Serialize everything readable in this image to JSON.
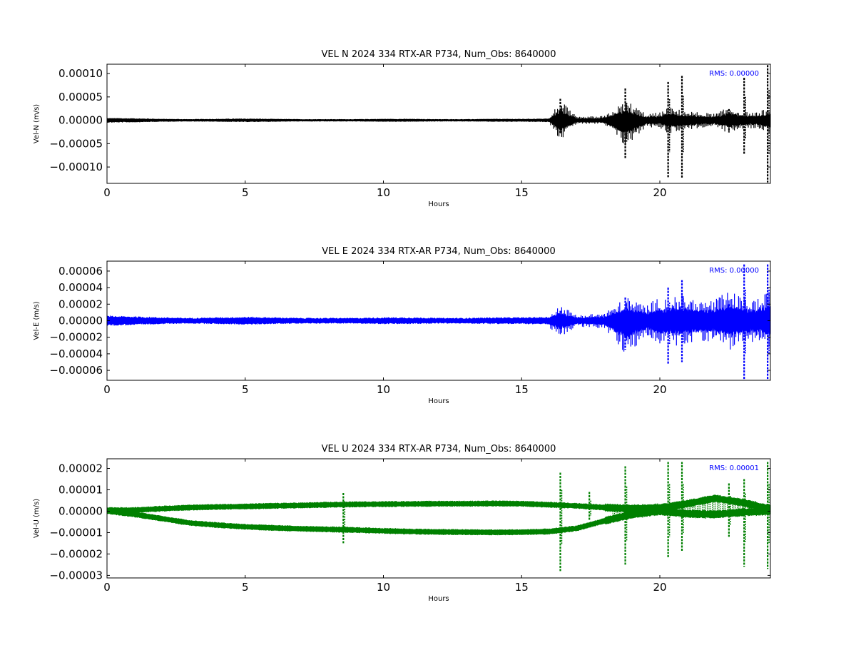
{
  "chart_data": [
    {
      "type": "line",
      "title": "VEL N 2024 334 RTX-AR  P734, Num_Obs: 8640000",
      "xlabel": "Hours",
      "ylabel": "Vel-N (m/s)",
      "xlim": [
        0,
        24
      ],
      "ylim": [
        -0.000135,
        0.00012
      ],
      "xticks": [
        0,
        5,
        10,
        15,
        20
      ],
      "xtick_labels": [
        "0",
        "5",
        "10",
        "15",
        "20"
      ],
      "yticks": [
        -0.0001,
        -5e-05,
        0,
        5e-05,
        0.0001
      ],
      "ytick_labels": [
        "−0.00010",
        "−0.00005",
        "0.00000",
        "0.00005",
        "0.00010"
      ],
      "annotation": "RMS:  0.00000",
      "color": "#000000",
      "series": [
        {
          "x": [
            0,
            1,
            2,
            3,
            4,
            5,
            6,
            7,
            8,
            9,
            10,
            11,
            12,
            13,
            14,
            15,
            16,
            16.4,
            17,
            18,
            18.8,
            19.5,
            20,
            20.3,
            20.8,
            21.5,
            22,
            22.5,
            23,
            23.5,
            24
          ],
          "upper": [
            3.5e-06,
            3e-06,
            2e-06,
            1.5e-06,
            2e-06,
            2.5e-06,
            2e-06,
            1.5e-06,
            1.5e-06,
            1.5e-06,
            2e-06,
            2e-06,
            1.5e-06,
            1.5e-06,
            2e-06,
            2e-06,
            2.5e-06,
            1.8e-05,
            3e-06,
            4e-06,
            1.8e-05,
            6e-06,
            7e-06,
            1.2e-05,
            9e-06,
            7e-06,
            6e-06,
            1.2e-05,
            8e-06,
            7e-06,
            1.2e-05
          ],
          "lower": [
            -3.5e-06,
            -3e-06,
            -2e-06,
            -1.5e-06,
            -2e-06,
            -2.5e-06,
            -2e-06,
            -1.5e-06,
            -1.5e-06,
            -1.5e-06,
            -2e-06,
            -2e-06,
            -1.5e-06,
            -1.5e-06,
            -2e-06,
            -2e-06,
            -2.5e-06,
            -1.8e-05,
            -3e-06,
            -4e-06,
            -2.5e-05,
            -6e-06,
            -7e-06,
            -1.2e-05,
            -9e-06,
            -7e-06,
            -6e-06,
            -1.2e-05,
            -8e-06,
            -7e-06,
            -1.2e-05
          ]
        }
      ],
      "spikes": [
        {
          "x": 16.4,
          "hi": 4.6e-05,
          "lo": -2.7e-05
        },
        {
          "x": 18.75,
          "hi": 6.8e-05,
          "lo": -8.3e-05
        },
        {
          "x": 20.3,
          "hi": 8.2e-05,
          "lo": -0.000124
        },
        {
          "x": 20.8,
          "hi": 9.5e-05,
          "lo": -0.000124
        },
        {
          "x": 22.5,
          "hi": 2.4e-05,
          "lo": -2.6e-05
        },
        {
          "x": 23.05,
          "hi": 9.1e-05,
          "lo": -7.2e-05
        },
        {
          "x": 23.9,
          "hi": 0.000118,
          "lo": -0.000133
        }
      ]
    },
    {
      "type": "line",
      "title": "VEL E 2024 334 RTX-AR  P734, Num_Obs: 8640000",
      "xlabel": "Hours",
      "ylabel": "Vel-E (m/s)",
      "xlim": [
        0,
        24
      ],
      "ylim": [
        -7.2e-05,
        7.2e-05
      ],
      "xticks": [
        0,
        5,
        10,
        15,
        20
      ],
      "xtick_labels": [
        "0",
        "5",
        "10",
        "15",
        "20"
      ],
      "yticks": [
        -6e-05,
        -4e-05,
        -2e-05,
        0,
        2e-05,
        4e-05,
        6e-05
      ],
      "ytick_labels": [
        "−0.00006",
        "−0.00004",
        "−0.00002",
        "0.00000",
        "0.00002",
        "0.00004",
        "0.00006"
      ],
      "annotation": "RMS:  0.00000",
      "color": "#0000ff",
      "series": [
        {
          "x": [
            0,
            1,
            2,
            3,
            4,
            5,
            6,
            7,
            8,
            9,
            10,
            11,
            12,
            13,
            14,
            15,
            16,
            16.4,
            17,
            18,
            18.8,
            19.5,
            20,
            20.3,
            20.8,
            21.5,
            22,
            22.5,
            23,
            23.5,
            24
          ],
          "upper": [
            4.5e-06,
            4e-06,
            3e-06,
            2.5e-06,
            3e-06,
            3.5e-06,
            3e-06,
            2.5e-06,
            2.5e-06,
            2.5e-06,
            3e-06,
            3e-06,
            2.5e-06,
            2.5e-06,
            3e-06,
            3e-06,
            3.5e-06,
            8e-06,
            3e-06,
            4e-06,
            1.2e-05,
            8e-06,
            1.2e-05,
            1.2e-05,
            1.3e-05,
            1e-05,
            1.1e-05,
            1.5e-05,
            1.2e-05,
            1.1e-05,
            1.5e-05
          ],
          "lower": [
            -4.5e-06,
            -4e-06,
            -3e-06,
            -2.5e-06,
            -3e-06,
            -3.5e-06,
            -3e-06,
            -2.5e-06,
            -2.5e-06,
            -2.5e-06,
            -3e-06,
            -3e-06,
            -2.5e-06,
            -2.5e-06,
            -3e-06,
            -3e-06,
            -3.5e-06,
            -8e-06,
            -3e-06,
            -4e-06,
            -1.8e-05,
            -8e-06,
            -1.2e-05,
            -1.2e-05,
            -1.3e-05,
            -1e-05,
            -1.1e-05,
            -1.5e-05,
            -1.2e-05,
            -1.1e-05,
            -1.5e-05
          ]
        }
      ],
      "spikes": [
        {
          "x": 16.4,
          "hi": 1.2e-05,
          "lo": -1e-05
        },
        {
          "x": 18.75,
          "hi": 2.8e-05,
          "lo": -3.5e-05
        },
        {
          "x": 20.3,
          "hi": 4e-05,
          "lo": -5.2e-05
        },
        {
          "x": 20.8,
          "hi": 4.9e-05,
          "lo": -5e-05
        },
        {
          "x": 22.5,
          "hi": 2e-05,
          "lo": -1.4e-05
        },
        {
          "x": 23.05,
          "hi": 6.8e-05,
          "lo": -7.2e-05
        },
        {
          "x": 23.9,
          "hi": 6.8e-05,
          "lo": -7.2e-05
        }
      ]
    },
    {
      "type": "line",
      "title": "VEL U 2024 334 RTX-AR  P734, Num_Obs: 8640000",
      "xlabel": "Hours",
      "ylabel": "Vel-U (m/s)",
      "xlim": [
        0,
        24
      ],
      "ylim": [
        -3.12e-05,
        2.45e-05
      ],
      "xticks": [
        0,
        5,
        10,
        15,
        20
      ],
      "xtick_labels": [
        "0",
        "5",
        "10",
        "15",
        "20"
      ],
      "yticks": [
        -3e-05,
        -2e-05,
        -1e-05,
        0,
        1e-05,
        2e-05
      ],
      "ytick_labels": [
        "−0.00003",
        "−0.00002",
        "−0.00001",
        "0.00000",
        "0.00001",
        "0.00002"
      ],
      "annotation": "RMS:  0.00001",
      "color": "#008000",
      "series": [
        {
          "name": "upper band",
          "x": [
            0,
            1,
            2,
            3,
            4,
            5,
            6,
            7,
            8,
            9,
            10,
            11,
            12,
            13,
            14,
            15,
            16,
            17,
            18,
            19,
            20,
            21,
            22,
            23,
            24
          ],
          "values": [
            5e-07,
            5e-07,
            1.2e-06,
            1.7e-06,
            2e-06,
            2.2e-06,
            2.5e-06,
            2.7e-06,
            3e-06,
            3.2e-06,
            3.3e-06,
            3.4e-06,
            3.5e-06,
            3.5e-06,
            3.6e-06,
            3.5e-06,
            3e-06,
            2.5e-06,
            1.7e-06,
            1.2e-06,
            1.5e-06,
            3.5e-06,
            6e-06,
            4e-06,
            1e-06
          ]
        },
        {
          "name": "lower band",
          "x": [
            0,
            1,
            2,
            3,
            4,
            5,
            6,
            7,
            8,
            9,
            10,
            11,
            12,
            13,
            14,
            15,
            16,
            17,
            18,
            19,
            20,
            21,
            22,
            23,
            24
          ],
          "values": [
            0,
            -1.5e-06,
            -3.5e-06,
            -5.5e-06,
            -6.5e-06,
            -7.3e-06,
            -7.8e-06,
            -8.2e-06,
            -8.5e-06,
            -8.8e-06,
            -9.2e-06,
            -9.5e-06,
            -9.7e-06,
            -9.8e-06,
            -9.9e-06,
            -9.8e-06,
            -9.5e-06,
            -8e-06,
            -4.5e-06,
            -1.5e-06,
            0,
            -1.2e-06,
            -1.5e-06,
            -5e-07,
            0
          ]
        }
      ],
      "band_halfwidth": 2.2e-06,
      "spikes": [
        {
          "x": 8.55,
          "hi": 8.5e-06,
          "lo": -1.5e-05
        },
        {
          "x": 16.4,
          "hi": 1.8e-05,
          "lo": -2.8e-05
        },
        {
          "x": 17.45,
          "hi": 9e-06,
          "lo": -4e-06
        },
        {
          "x": 18.75,
          "hi": 2.1e-05,
          "lo": -2.5e-05
        },
        {
          "x": 20.3,
          "hi": 2.3e-05,
          "lo": -2.2e-05
        },
        {
          "x": 20.8,
          "hi": 2.3e-05,
          "lo": -1.9e-05
        },
        {
          "x": 22.5,
          "hi": 1.3e-05,
          "lo": -1.2e-05
        },
        {
          "x": 23.05,
          "hi": 1.5e-05,
          "lo": -2.6e-05
        },
        {
          "x": 23.9,
          "hi": 2.3e-05,
          "lo": -2.7e-05
        }
      ]
    }
  ]
}
